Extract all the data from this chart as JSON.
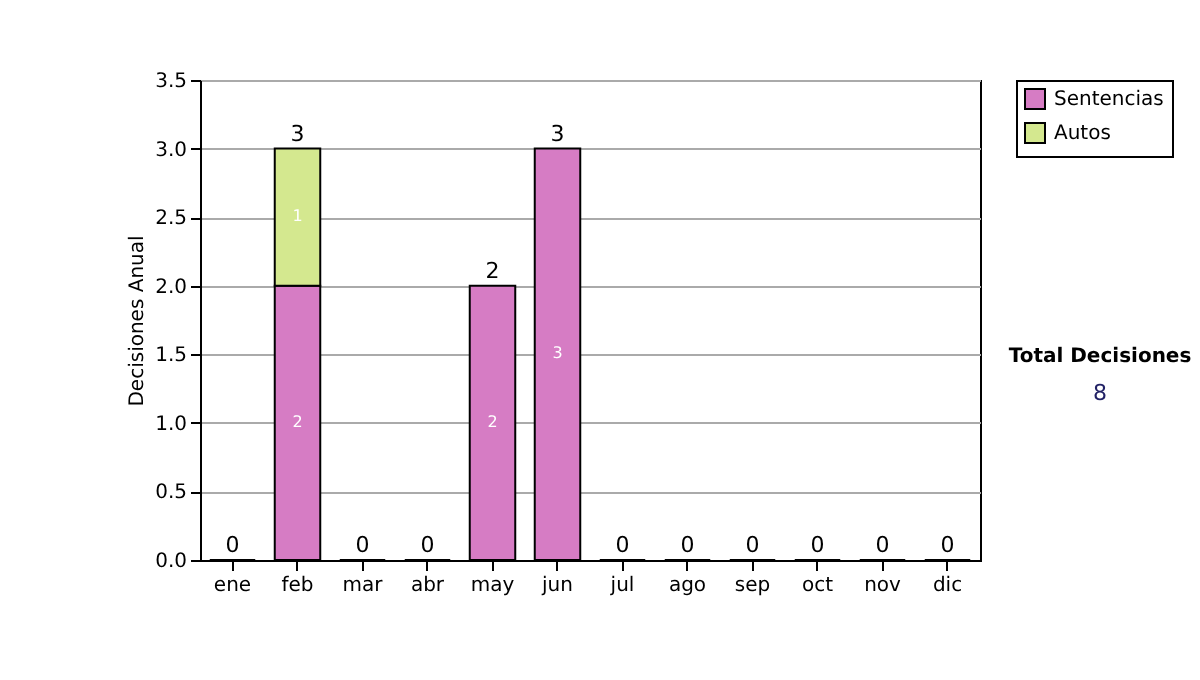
{
  "chart_data": {
    "type": "bar",
    "stacked": true,
    "ylabel": "Decisiones Anual",
    "categories": [
      "ene",
      "feb",
      "mar",
      "abr",
      "may",
      "jun",
      "jul",
      "ago",
      "sep",
      "oct",
      "nov",
      "dic"
    ],
    "series": [
      {
        "name": "Sentencias",
        "color": "#d67cc4",
        "values": [
          0,
          2,
          0,
          0,
          2,
          3,
          0,
          0,
          0,
          0,
          0,
          0
        ],
        "value_labels": [
          null,
          "2",
          null,
          null,
          "2",
          "3",
          null,
          null,
          null,
          null,
          null,
          null
        ]
      },
      {
        "name": "Autos",
        "color": "#d4e88f",
        "values": [
          null,
          1,
          null,
          null,
          null,
          null,
          null,
          null,
          null,
          null,
          null,
          null
        ],
        "value_labels": [
          null,
          "1",
          null,
          null,
          null,
          null,
          null,
          null,
          null,
          null,
          null,
          null
        ]
      }
    ],
    "totals": [
      "0",
      "3",
      "0",
      "0",
      "2",
      "3",
      "0",
      "0",
      "0",
      "0",
      "0",
      "0"
    ],
    "ylim": [
      0,
      3.5
    ],
    "yticks": [
      {
        "value": 0,
        "label": "0.0"
      },
      {
        "value": 0.5,
        "label": "0.5"
      },
      {
        "value": 1,
        "label": "1.0"
      },
      {
        "value": 1.5,
        "label": "1.5"
      },
      {
        "value": 2,
        "label": "2.0"
      },
      {
        "value": 2.5,
        "label": "2.5"
      },
      {
        "value": 3,
        "label": "3.0"
      },
      {
        "value": 3.5,
        "label": "3.5"
      }
    ],
    "grid": "y",
    "legend": "right",
    "annotations": [
      "Total Decisiones",
      "8"
    ]
  }
}
